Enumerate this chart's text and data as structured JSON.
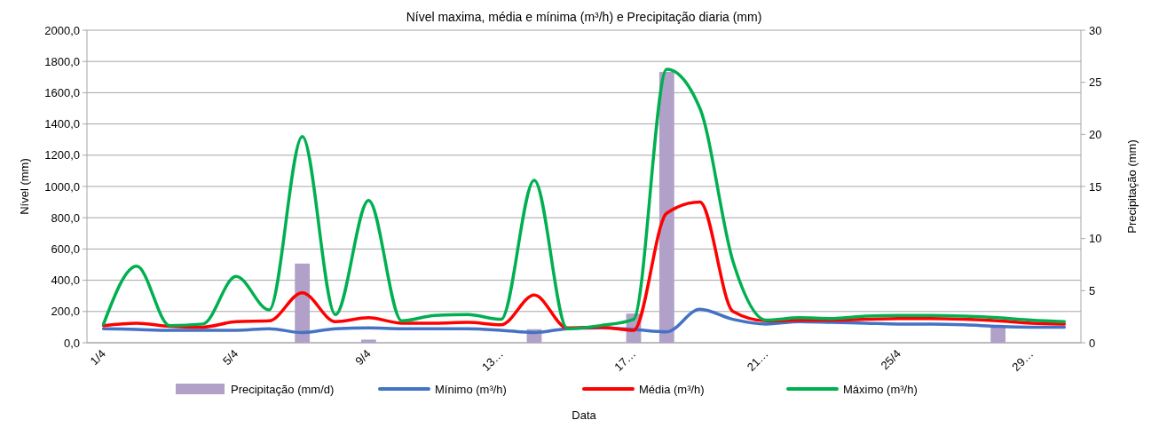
{
  "chart_data": {
    "type": "line",
    "title": "Nível maxima, média e mínima (m³/h) e Precipitação diaria (mm)",
    "xlabel": "Data",
    "ylabel": "Nível (mm)",
    "y2label": "Precipitação (mm)",
    "categories": [
      "1/4",
      null,
      null,
      null,
      "5/4",
      null,
      null,
      null,
      "9/4",
      null,
      null,
      null,
      "13…",
      null,
      null,
      null,
      "17…",
      null,
      null,
      null,
      "21…",
      null,
      null,
      null,
      "25/4",
      null,
      null,
      null,
      "29…",
      null
    ],
    "series": [
      {
        "name": "Precipitação (mm/d)",
        "type": "bar",
        "axis": "y2",
        "color": "#b1a0c7",
        "values": [
          null,
          null,
          null,
          null,
          null,
          null,
          7.6,
          null,
          0.3,
          null,
          null,
          null,
          null,
          1.3,
          null,
          null,
          2.8,
          26.0,
          null,
          null,
          null,
          null,
          null,
          null,
          null,
          null,
          null,
          1.5,
          null,
          null
        ]
      },
      {
        "name": "Mínimo (m³/h)",
        "color": "#4472c4",
        "values": [
          90,
          85,
          80,
          80,
          80,
          90,
          65,
          90,
          95,
          90,
          90,
          90,
          80,
          65,
          90,
          95,
          85,
          70,
          215,
          150,
          120,
          135,
          130,
          125,
          120,
          120,
          115,
          105,
          100,
          100
        ]
      },
      {
        "name": "Média (m³/h)",
        "color": "#ff0000",
        "values": [
          110,
          125,
          105,
          100,
          135,
          140,
          320,
          135,
          160,
          125,
          125,
          130,
          115,
          305,
          95,
          100,
          80,
          830,
          900,
          200,
          140,
          145,
          145,
          150,
          155,
          155,
          150,
          140,
          125,
          120
        ]
      },
      {
        "name": "Máximo (m³/h)",
        "color": "#00b050",
        "values": [
          120,
          490,
          110,
          120,
          425,
          210,
          1320,
          180,
          910,
          140,
          175,
          180,
          150,
          1040,
          90,
          110,
          150,
          1750,
          1500,
          520,
          145,
          160,
          155,
          170,
          175,
          175,
          170,
          160,
          145,
          135
        ]
      }
    ],
    "ylim": [
      0,
      2000
    ],
    "yticks": [
      {
        "value": 0,
        "label": "0,0"
      },
      {
        "value": 200,
        "label": "200,0"
      },
      {
        "value": 400,
        "label": "400,0"
      },
      {
        "value": 600,
        "label": "600,0"
      },
      {
        "value": 800,
        "label": "800,0"
      },
      {
        "value": 1000,
        "label": "1000,0"
      },
      {
        "value": 1200,
        "label": "1200,0"
      },
      {
        "value": 1400,
        "label": "1400,0"
      },
      {
        "value": 1600,
        "label": "1600,0"
      },
      {
        "value": 1800,
        "label": "1800,0"
      },
      {
        "value": 2000,
        "label": "2000,0"
      }
    ],
    "y2lim": [
      0,
      30
    ],
    "y2ticks": [
      0,
      5,
      10,
      15,
      20,
      25,
      30
    ],
    "grid": "y",
    "legend": "bottom"
  }
}
